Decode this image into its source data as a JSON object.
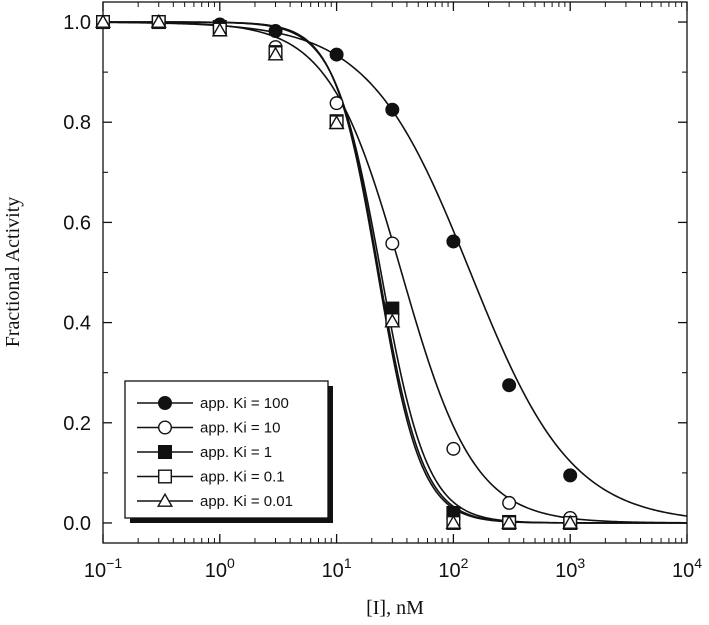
{
  "chart_data": {
    "type": "scatter",
    "xlabel": "[I], nM",
    "ylabel": "Fractional Activity",
    "xscale": "log",
    "xlim": [
      0.1,
      10000
    ],
    "ylim": [
      -0.04,
      1.04
    ],
    "x_ticks": [
      {
        "base": "10",
        "exp": "−1",
        "value": 0.1
      },
      {
        "base": "10",
        "exp": "0",
        "value": 1
      },
      {
        "base": "10",
        "exp": "1",
        "value": 10
      },
      {
        "base": "10",
        "exp": "2",
        "value": 100
      },
      {
        "base": "10",
        "exp": "3",
        "value": 1000
      },
      {
        "base": "10",
        "exp": "4",
        "value": 10000
      }
    ],
    "y_ticks": [
      "0.0",
      "0.2",
      "0.4",
      "0.6",
      "0.8",
      "1.0"
    ],
    "grid": false,
    "legend_position": "bottom-left",
    "x": [
      0.1,
      0.3,
      1,
      3,
      10,
      30,
      100,
      300,
      1000
    ],
    "series": [
      {
        "name": "app. Ki = 100",
        "marker": "circle",
        "filled": true,
        "values": [
          1.0,
          1.0,
          0.995,
          0.982,
          0.935,
          0.825,
          0.562,
          0.275,
          0.095
        ],
        "curve": {
          "ic50": 140,
          "hill": 1.0
        }
      },
      {
        "name": "app. Ki = 10",
        "marker": "circle",
        "filled": false,
        "values": [
          1.0,
          1.0,
          0.99,
          0.95,
          0.838,
          0.558,
          0.148,
          0.04,
          0.01
        ],
        "curve": {
          "ic50": 36,
          "hill": 1.4
        }
      },
      {
        "name": "app. Ki = 1",
        "marker": "square",
        "filled": true,
        "values": [
          1.0,
          1.0,
          0.99,
          0.94,
          0.802,
          0.428,
          0.02,
          0.002,
          0.0
        ],
        "curve": {
          "ic50": 24,
          "hill": 2.2
        }
      },
      {
        "name": "app. Ki = 0.1",
        "marker": "square",
        "filled": false,
        "values": [
          1.0,
          1.0,
          0.985,
          0.938,
          0.8,
          0.405,
          0.0,
          0.0,
          0.0
        ],
        "curve": {
          "ic50": 23,
          "hill": 2.3
        }
      },
      {
        "name": "app. Ki = 0.01",
        "marker": "triangle",
        "filled": false,
        "values": [
          1.0,
          1.0,
          0.983,
          0.935,
          0.798,
          0.402,
          0.0,
          0.0,
          0.0
        ],
        "curve": {
          "ic50": 22.5,
          "hill": 2.35
        }
      }
    ]
  }
}
